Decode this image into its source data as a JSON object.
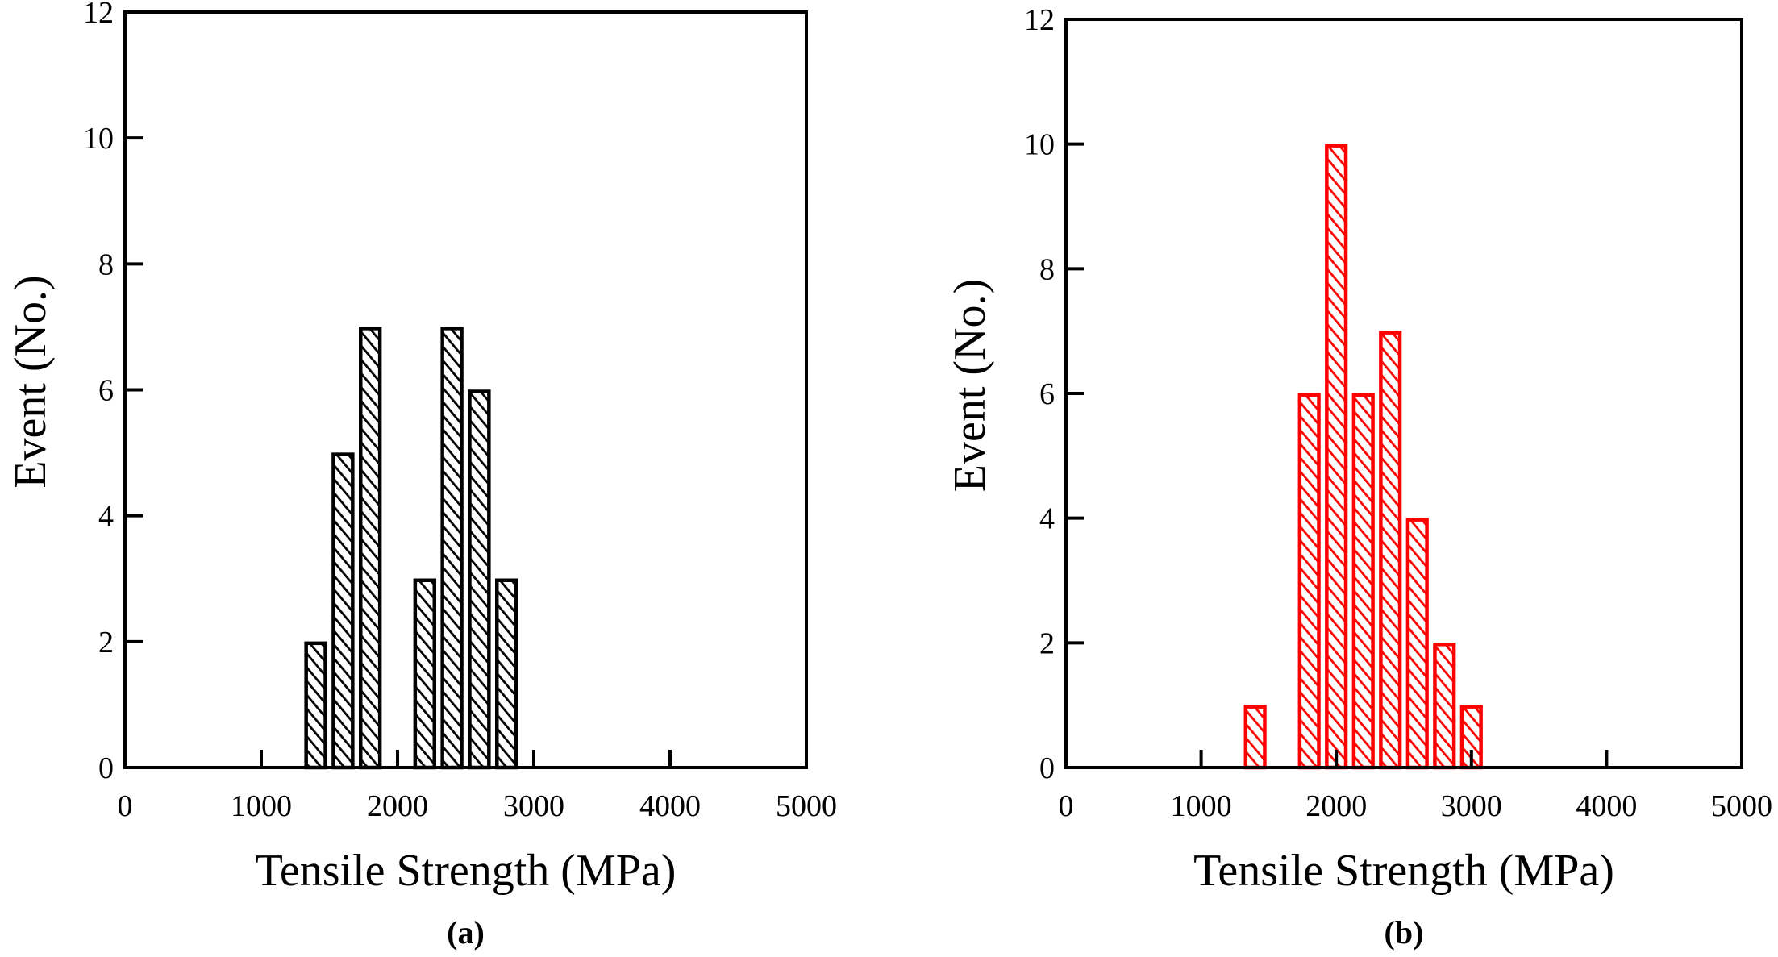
{
  "chart_data": [
    {
      "type": "bar",
      "panel": "(a)",
      "title": "",
      "xlabel": "Tensile Strength (MPa)",
      "ylabel": "Event (No.)",
      "xlim": [
        0,
        5000
      ],
      "ylim": [
        0,
        12
      ],
      "xticks": [
        0,
        1000,
        2000,
        3000,
        4000,
        5000
      ],
      "yticks": [
        0,
        2,
        4,
        6,
        8,
        10,
        12
      ],
      "grid": false,
      "legend": "none",
      "bar_fill": "hatched",
      "color": "#000000",
      "bin_width": 165,
      "x": [
        1400,
        1600,
        1800,
        2200,
        2400,
        2600,
        2800
      ],
      "values": [
        2,
        5,
        7,
        3,
        7,
        6,
        3
      ]
    },
    {
      "type": "bar",
      "panel": "(b)",
      "title": "",
      "xlabel": "Tensile Strength (MPa)",
      "ylabel": "Event (No.)",
      "xlim": [
        0,
        5000
      ],
      "ylim": [
        0,
        12
      ],
      "xticks": [
        0,
        1000,
        2000,
        3000,
        4000,
        5000
      ],
      "yticks": [
        0,
        2,
        4,
        6,
        8,
        10,
        12
      ],
      "grid": false,
      "legend": "none",
      "bar_fill": "hatched",
      "color": "#ff0000",
      "bin_width": 165,
      "x": [
        1400,
        1800,
        2000,
        2200,
        2400,
        2600,
        2800,
        3000
      ],
      "values": [
        1,
        6,
        10,
        6,
        7,
        4,
        2,
        1
      ]
    }
  ],
  "captions": [
    "(a)",
    "(b)"
  ]
}
